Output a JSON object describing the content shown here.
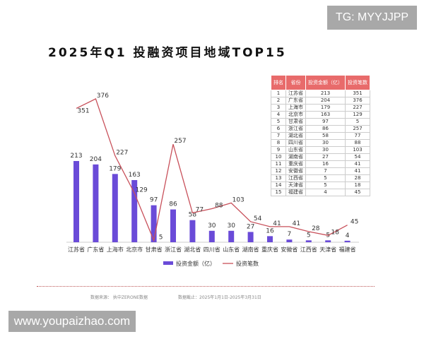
{
  "watermark_top": "TG: MYYJJPP",
  "watermark_bottom": "www.youpaizhao.com",
  "chart_data": {
    "type": "bar+line",
    "title": "2025年Q1  投融资项目地域TOP15",
    "categories": [
      "江苏省",
      "广东省",
      "上海市",
      "北京市",
      "甘肃省",
      "浙江省",
      "湖北省",
      "四川省",
      "山东省",
      "湖南省",
      "重庆省",
      "安徽省",
      "江西省",
      "天津省",
      "福建省"
    ],
    "series": [
      {
        "name": "投资金额（亿）",
        "type": "bar",
        "color": "#6a4bd8",
        "values": [
          213,
          204,
          179,
          163,
          97,
          86,
          58,
          30,
          30,
          27,
          16,
          7,
          5,
          5,
          4
        ]
      },
      {
        "name": "投资笔数",
        "type": "line",
        "color": "#c8505a",
        "values": [
          351,
          376,
          227,
          129,
          5,
          257,
          77,
          88,
          103,
          54,
          41,
          41,
          28,
          18,
          45
        ]
      }
    ],
    "legend": "bottom",
    "grid": false
  },
  "table": {
    "headers": [
      "排名",
      "省份",
      "投资金额（亿）",
      "投资笔数"
    ],
    "rows": [
      [
        "1",
        "江苏省",
        "213",
        "351"
      ],
      [
        "2",
        "广东省",
        "204",
        "376"
      ],
      [
        "3",
        "上海市",
        "179",
        "227"
      ],
      [
        "4",
        "北京市",
        "163",
        "129"
      ],
      [
        "5",
        "甘肃省",
        "97",
        "5"
      ],
      [
        "6",
        "浙江省",
        "86",
        "257"
      ],
      [
        "7",
        "湖北省",
        "58",
        "77"
      ],
      [
        "8",
        "四川省",
        "30",
        "88"
      ],
      [
        "9",
        "山东省",
        "30",
        "103"
      ],
      [
        "10",
        "湖南省",
        "27",
        "54"
      ],
      [
        "11",
        "重庆省",
        "16",
        "41"
      ],
      [
        "12",
        "安徽省",
        "7",
        "41"
      ],
      [
        "13",
        "江西省",
        "5",
        "28"
      ],
      [
        "14",
        "天津省",
        "5",
        "18"
      ],
      [
        "15",
        "福建省",
        "4",
        "45"
      ]
    ]
  },
  "footer": {
    "source": "数据来源：  执中ZERONE数据",
    "period": "数据截止：2025年1月1日-2025年3月31日"
  }
}
